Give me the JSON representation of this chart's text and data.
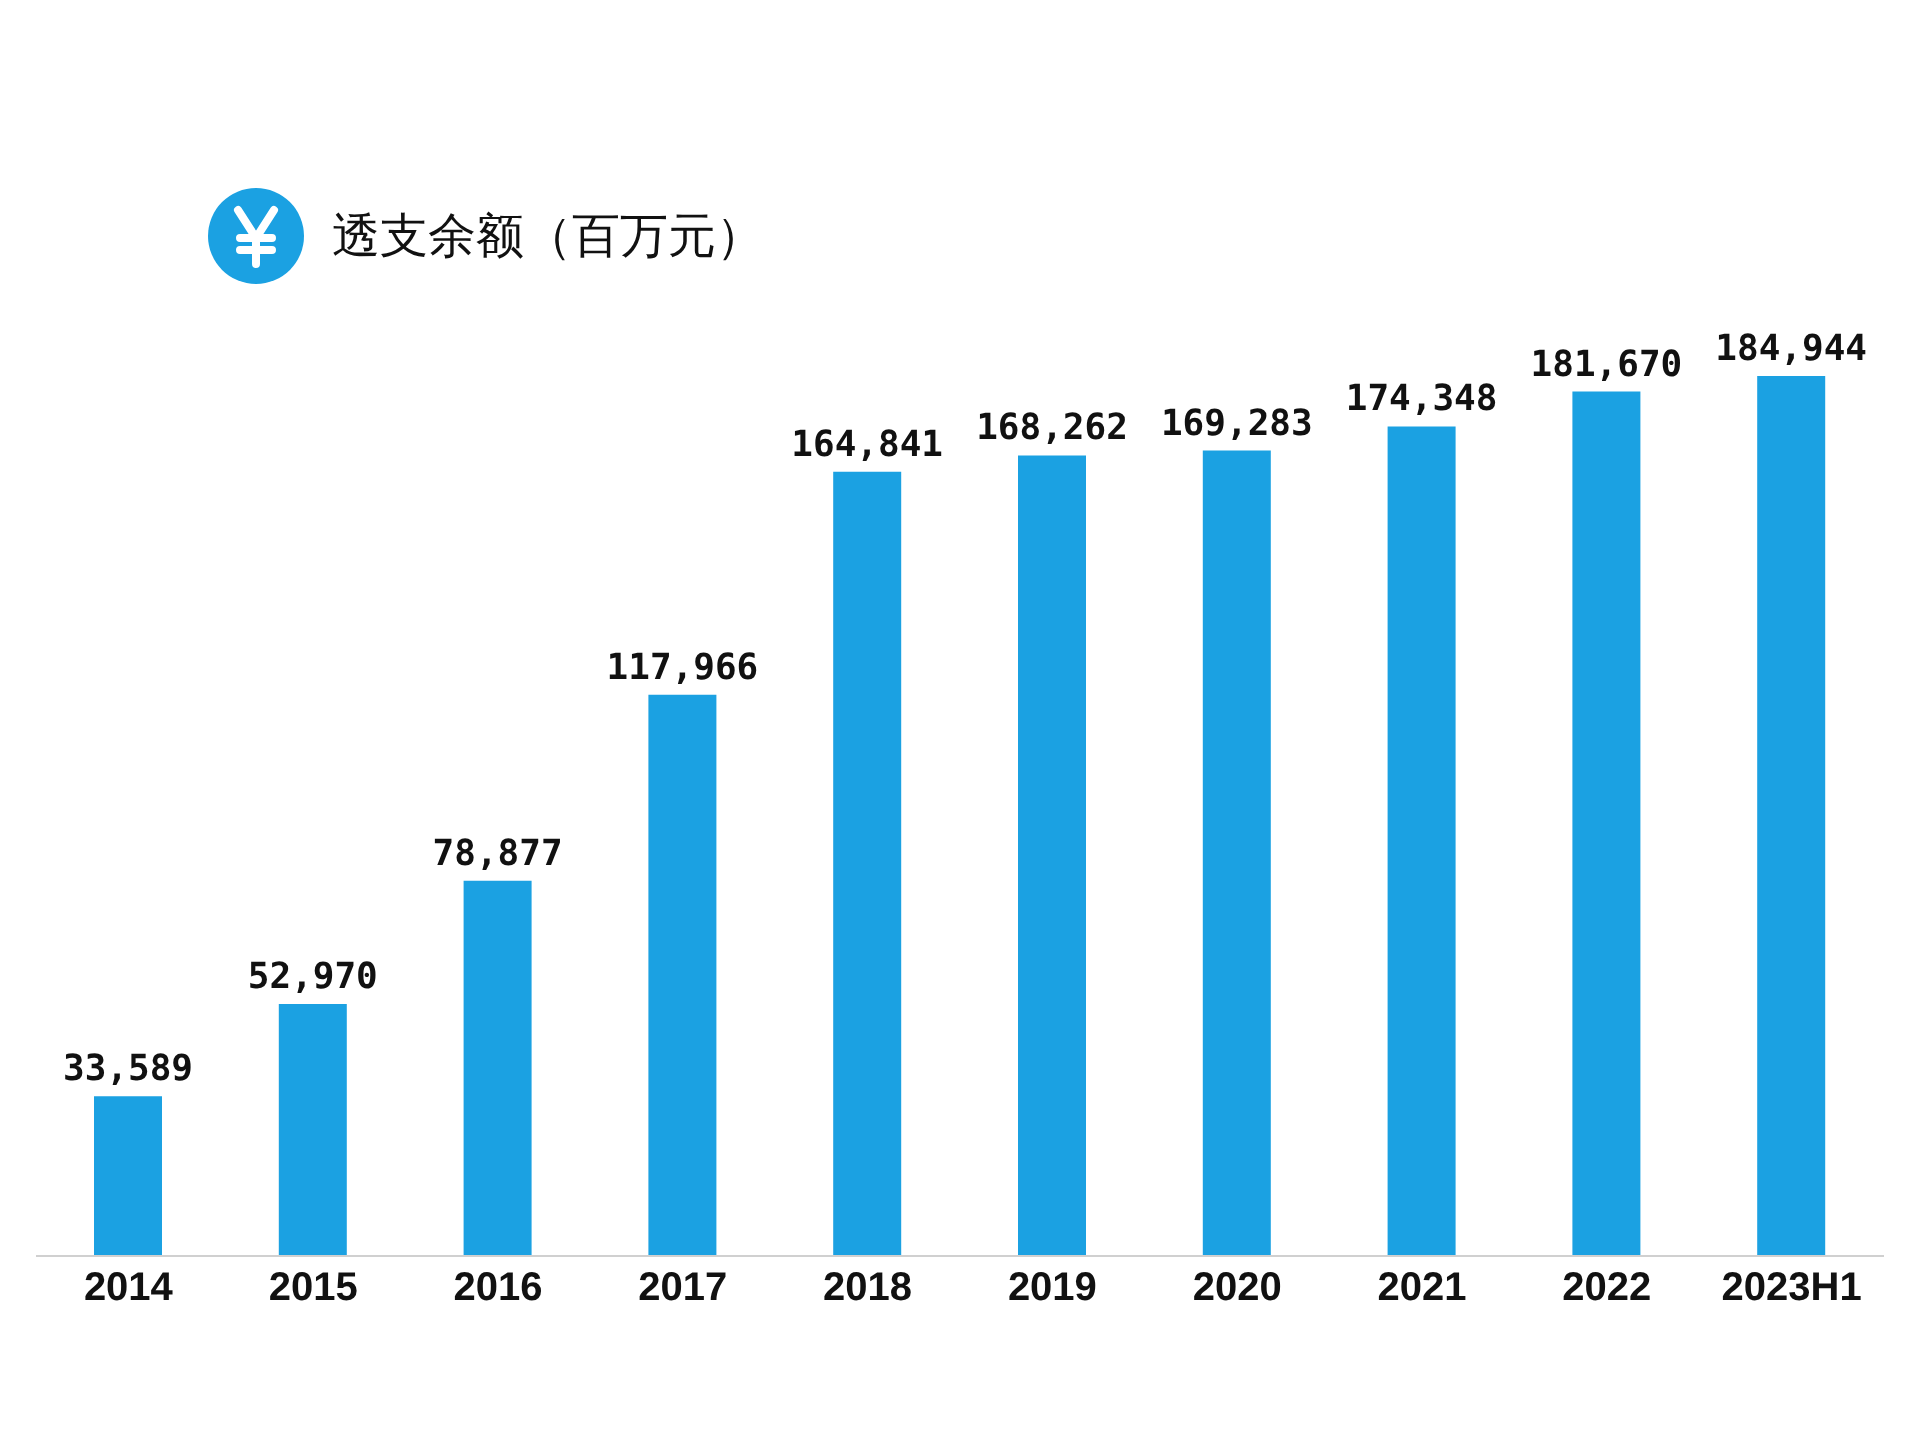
{
  "chart_data": {
    "type": "bar",
    "categories": [
      "2014",
      "2015",
      "2016",
      "2017",
      "2018",
      "2019",
      "2020",
      "2021",
      "2022",
      "2023H1"
    ],
    "series": [
      {
        "name": "透支余额（百万元）",
        "color": "#1ba1e2",
        "values": [
          33589,
          52970,
          78877,
          117966,
          164841,
          168262,
          169283,
          174348,
          181670,
          184944
        ],
        "value_labels": [
          "33,589",
          "52,970",
          "78,877",
          "117,966",
          "164,841",
          "168,262",
          "169,283",
          "174,348",
          "181,670",
          "184,944"
        ]
      }
    ],
    "legend": "top left"
  }
}
